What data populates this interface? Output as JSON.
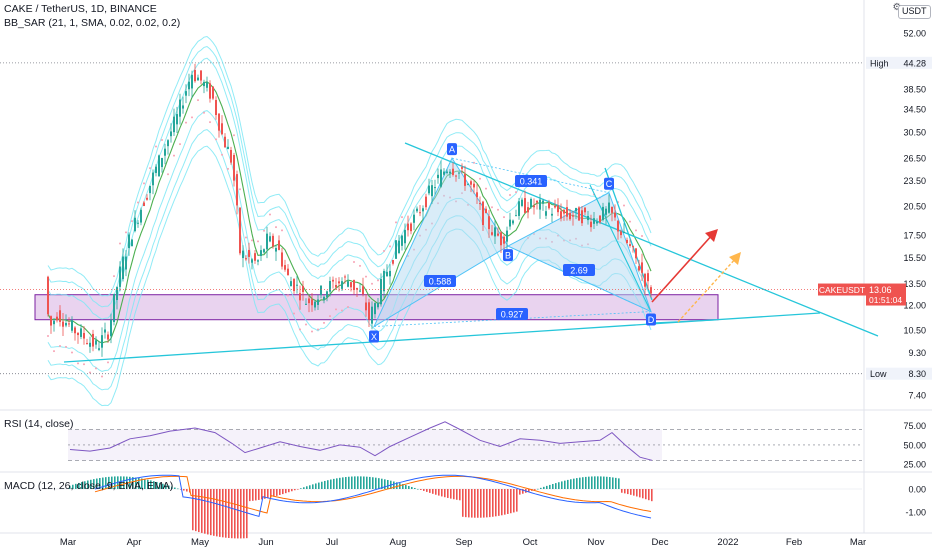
{
  "header": {
    "title": "CAKE / TetherUS, 1D, BINANCE",
    "indicator_sar": "BB_SAR (21, 1, SMA, 0.02, 0.02, 0.2)",
    "indicator_rsi": "RSI (14, close)",
    "indicator_macd": "MACD (12, 26, close, 9, EMA, EMA)",
    "currency": "USDT",
    "settings_glyph": "⚙"
  },
  "colors": {
    "up": "#26a69a",
    "down": "#ef5350",
    "bb_band": "#7ee8f5",
    "bb_basis": "#4caf50",
    "sar": "#f7a3b5",
    "trendline": "#26c6da",
    "pattern_fill": "#b3d9f2",
    "pattern_edge": "#4fc3f7",
    "label_blue": "#2962ff",
    "zone_fill": "#e1c4ea",
    "zone_edge": "#7b1fa2",
    "arrow_red": "#e53935",
    "arrow_orange": "#ffb74d",
    "rsi_line": "#7e57c2",
    "macd_line": "#2962ff",
    "signal_line": "#ff6d00",
    "price_tag": "#ef5350"
  },
  "chart_data": {
    "type": "candlestick",
    "symbol": "CAKEUSDT",
    "x_ticks": [
      "Mar",
      "Apr",
      "May",
      "Jun",
      "Jul",
      "Aug",
      "Sep",
      "Oct",
      "Nov",
      "Dec",
      "2022",
      "Feb",
      "Mar"
    ],
    "price_axis": {
      "ticks": [
        "52.00",
        "44.28",
        "38.50",
        "34.50",
        "30.50",
        "26.50",
        "23.50",
        "20.50",
        "17.50",
        "15.50",
        "13.50",
        "12.00",
        "10.50",
        "9.30",
        "8.30",
        "7.40"
      ],
      "scale": "log"
    },
    "high_marker": {
      "label": "High",
      "value": "44.28"
    },
    "low_marker": {
      "label": "Low",
      "value": "8.30"
    },
    "last_price": {
      "symbol": "CAKEUSDT",
      "value": "13.06",
      "countdown": "01:51:04"
    },
    "harmonic_pattern": {
      "points": [
        {
          "label": "X",
          "price": 10.7
        },
        {
          "label": "A",
          "price": 26.5
        },
        {
          "label": "B",
          "price": 16.5
        },
        {
          "label": "C",
          "price": 22.0
        },
        {
          "label": "D",
          "price": 11.6
        }
      ],
      "ratios": [
        "0.341",
        "0.588",
        "2.69",
        "0.927"
      ]
    },
    "support_zone": {
      "low": 11.1,
      "high": 12.7
    },
    "rsi": {
      "ticks": [
        "75.00",
        "50.00",
        "25.00"
      ],
      "upper": 70,
      "lower": 30
    },
    "macd": {
      "ticks": [
        "0.00",
        "-1.00"
      ]
    }
  }
}
